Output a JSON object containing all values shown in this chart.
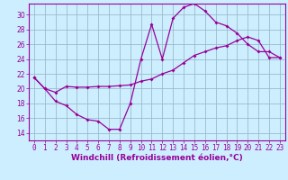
{
  "xlabel": "Windchill (Refroidissement éolien,°C)",
  "bg_color": "#cceeff",
  "grid_color": "#99bbcc",
  "line_color": "#990099",
  "spine_color": "#663366",
  "xlim": [
    -0.5,
    23.5
  ],
  "ylim": [
    13.0,
    31.5
  ],
  "xticks": [
    0,
    1,
    2,
    3,
    4,
    5,
    6,
    7,
    8,
    9,
    10,
    11,
    12,
    13,
    14,
    15,
    16,
    17,
    18,
    19,
    20,
    21,
    22,
    23
  ],
  "yticks": [
    14,
    16,
    18,
    20,
    22,
    24,
    26,
    28,
    30
  ],
  "line1_x": [
    0,
    1,
    2,
    3,
    4,
    5,
    6,
    7,
    8,
    9,
    10,
    11,
    12,
    13,
    14,
    15,
    16,
    17,
    18,
    19,
    20,
    21,
    22,
    23
  ],
  "line1_y": [
    21.5,
    20.0,
    18.3,
    17.7,
    16.5,
    15.8,
    15.6,
    14.5,
    14.5,
    18.0,
    24.0,
    28.7,
    24.0,
    29.5,
    31.0,
    31.5,
    30.5,
    29.0,
    28.5,
    27.5,
    26.0,
    25.0,
    25.0,
    24.2
  ],
  "line2_x": [
    0,
    1,
    2,
    3,
    4,
    5,
    6,
    7,
    8,
    9,
    10,
    11,
    12,
    13,
    14,
    15,
    16,
    17,
    18,
    19,
    20,
    21,
    22,
    23
  ],
  "line2_y": [
    21.5,
    20.0,
    19.5,
    20.3,
    20.2,
    20.2,
    20.3,
    20.3,
    20.4,
    20.5,
    21.0,
    21.3,
    22.0,
    22.5,
    23.5,
    24.5,
    25.0,
    25.5,
    25.8,
    26.5,
    27.0,
    26.5,
    24.2,
    24.2
  ],
  "tick_fontsize": 5.5,
  "xlabel_fontsize": 6.5
}
